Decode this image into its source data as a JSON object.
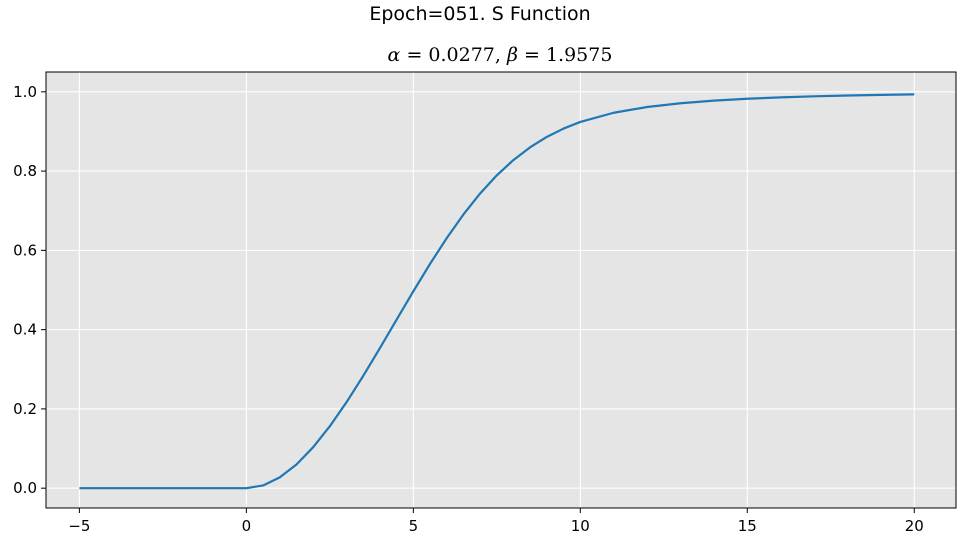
{
  "chart_data": {
    "type": "line",
    "title": "Epoch=051. S Function",
    "subtitle": {
      "alpha_symbol": "α",
      "alpha_value": "= 0.0277,",
      "beta_symbol": "β",
      "beta_value": "= 1.9575"
    },
    "xlim": [
      -6,
      21.25
    ],
    "ylim": [
      -0.05,
      1.05
    ],
    "x_ticks": [
      -5,
      0,
      5,
      10,
      15,
      20
    ],
    "x_tick_labels": [
      "−5",
      "0",
      "5",
      "10",
      "15",
      "20"
    ],
    "y_ticks": [
      0.0,
      0.2,
      0.4,
      0.6,
      0.8,
      1.0
    ],
    "y_tick_labels": [
      "0.0",
      "0.2",
      "0.4",
      "0.6",
      "0.8",
      "1.0"
    ],
    "grid": true,
    "series": [
      {
        "color": "#1f77b4",
        "x": [
          -5,
          -4,
          -3,
          -2,
          -1,
          0,
          0.5,
          1,
          1.5,
          2,
          2.5,
          3,
          3.5,
          4,
          4.5,
          5,
          5.5,
          6,
          6.5,
          7,
          7.5,
          8,
          8.5,
          9,
          9.5,
          10,
          11,
          12,
          13,
          14,
          15,
          16,
          17,
          18,
          19,
          20
        ],
        "y": [
          0,
          0,
          0,
          0,
          0,
          0,
          0.0069,
          0.0273,
          0.0598,
          0.1034,
          0.1563,
          0.217,
          0.2834,
          0.3535,
          0.4253,
          0.4968,
          0.5659,
          0.6309,
          0.6905,
          0.7436,
          0.7894,
          0.8281,
          0.8602,
          0.8864,
          0.9073,
          0.924,
          0.9472,
          0.9617,
          0.9712,
          0.9778,
          0.9825,
          0.986,
          0.9887,
          0.9907,
          0.9923,
          0.9936
        ]
      }
    ]
  },
  "colors": {
    "axes_background": "#e5e5e5",
    "grid": "#ffffff",
    "line": "#1f77b4",
    "axis_frame": "#000000"
  }
}
